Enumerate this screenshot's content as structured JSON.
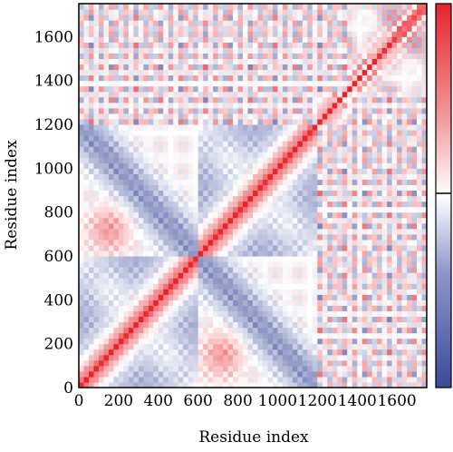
{
  "chart_data": {
    "type": "heatmap",
    "title": "",
    "xlabel": "Residue index",
    "ylabel": "Residue index",
    "xlim": [
      0,
      1750
    ],
    "ylim": [
      0,
      1750
    ],
    "x_ticks": [
      "0",
      "200",
      "400",
      "600",
      "800",
      "1000",
      "1200",
      "1400",
      "1600"
    ],
    "x_tick_values": [
      0,
      200,
      400,
      600,
      800,
      1000,
      1200,
      1400,
      1600
    ],
    "y_ticks": [
      "0",
      "200",
      "400",
      "600",
      "800",
      "1000",
      "1200",
      "1400",
      "1600"
    ],
    "y_tick_values": [
      0,
      200,
      400,
      600,
      800,
      1000,
      1200,
      1400,
      1600
    ],
    "domain_boundaries": [
      0,
      600,
      1200,
      1350,
      1750
    ],
    "colorscale": {
      "low": "#3a4a9a",
      "mid": "#ffffff",
      "high": "#e8232a",
      "range": [
        -1,
        1
      ],
      "mid_marker": 0
    },
    "grid": false,
    "legend": "colorbar-right"
  }
}
